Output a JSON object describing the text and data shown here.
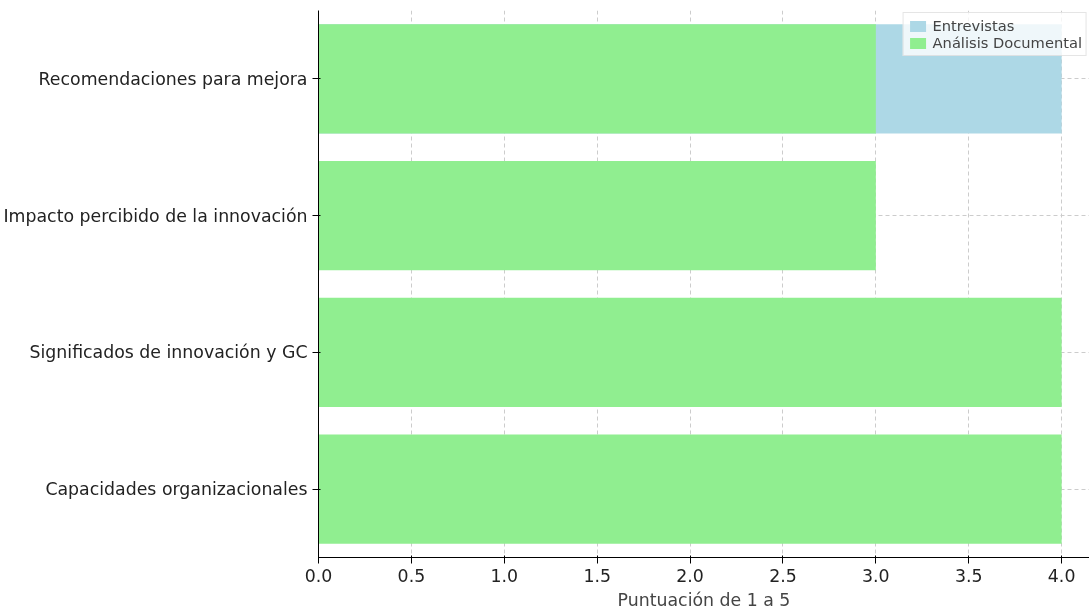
{
  "chart_data": {
    "type": "bar",
    "orientation": "horizontal",
    "xlabel": "Puntuación de 1 a 5",
    "categories": [
      "Recomendaciones para mejora",
      "Impacto percibido de la innovación",
      "Significados de innovación y GC",
      "Capacidades organizacionales"
    ],
    "series": [
      {
        "name": "Entrevistas",
        "color": "#add8e6",
        "values": [
          4,
          null,
          null,
          null
        ]
      },
      {
        "name": "Análisis Documental",
        "color": "#90ee90",
        "values": [
          3,
          3,
          4,
          4
        ]
      }
    ],
    "xlim": [
      0,
      4.15
    ],
    "xticks": [
      {
        "value": 0,
        "label": "0.0"
      },
      {
        "value": 0.5,
        "label": "0.5"
      },
      {
        "value": 1,
        "label": "1.0"
      },
      {
        "value": 1.5,
        "label": "1.5"
      },
      {
        "value": 2,
        "label": "2.0"
      },
      {
        "value": 2.5,
        "label": "2.5"
      },
      {
        "value": 3,
        "label": "3.0"
      },
      {
        "value": 3.5,
        "label": "3.5"
      },
      {
        "value": 4,
        "label": "4.0"
      }
    ],
    "grid": true,
    "legend": "top right"
  }
}
